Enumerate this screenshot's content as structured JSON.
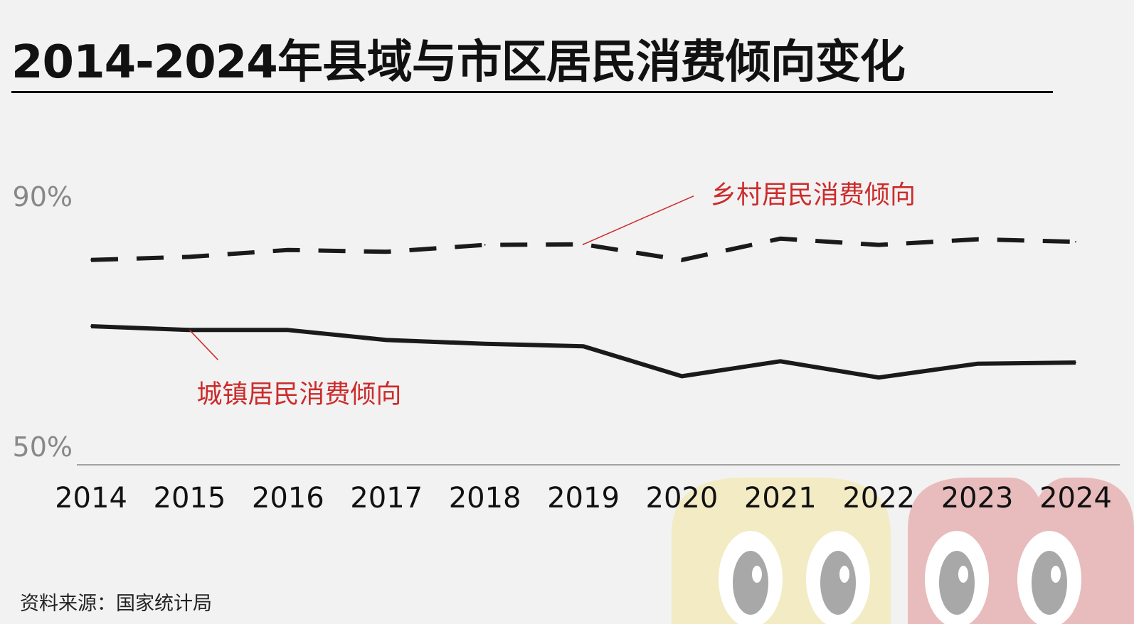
{
  "title": "2014-2024年县域与市区居民消费倾向变化",
  "source": "资料来源：国家统计局",
  "colors": {
    "line": "#1a1a1a",
    "annotation": "#cc2b2b",
    "axis_label": "#888888",
    "mascot_yellow": "#f3ebc4",
    "mascot_red": "#e8bcbc"
  },
  "chart_data": {
    "type": "line",
    "x": [
      "2014",
      "2015",
      "2016",
      "2017",
      "2018",
      "2019",
      "2020",
      "2021",
      "2022",
      "2023",
      "2024"
    ],
    "y_tick_labels": [
      "90%",
      "50%"
    ],
    "ylim": [
      50,
      90
    ],
    "series": [
      {
        "name": "乡村居民消费倾向",
        "style": "dashed",
        "values": [
          79.8,
          80.3,
          81.4,
          81.1,
          82.2,
          82.3,
          79.8,
          83.2,
          82.2,
          83.1,
          82.7
        ]
      },
      {
        "name": "城镇居民消费倾向",
        "style": "solid",
        "values": [
          69.2,
          68.6,
          68.6,
          67.0,
          66.4,
          66.0,
          61.2,
          63.6,
          61.0,
          63.2,
          63.4
        ]
      }
    ],
    "annotations": [
      {
        "text": "乡村居民消费倾向",
        "series": 0,
        "anchor_x": "2019"
      },
      {
        "text": "城镇居民消费倾向",
        "series": 1,
        "anchor_x": "2015"
      }
    ]
  }
}
